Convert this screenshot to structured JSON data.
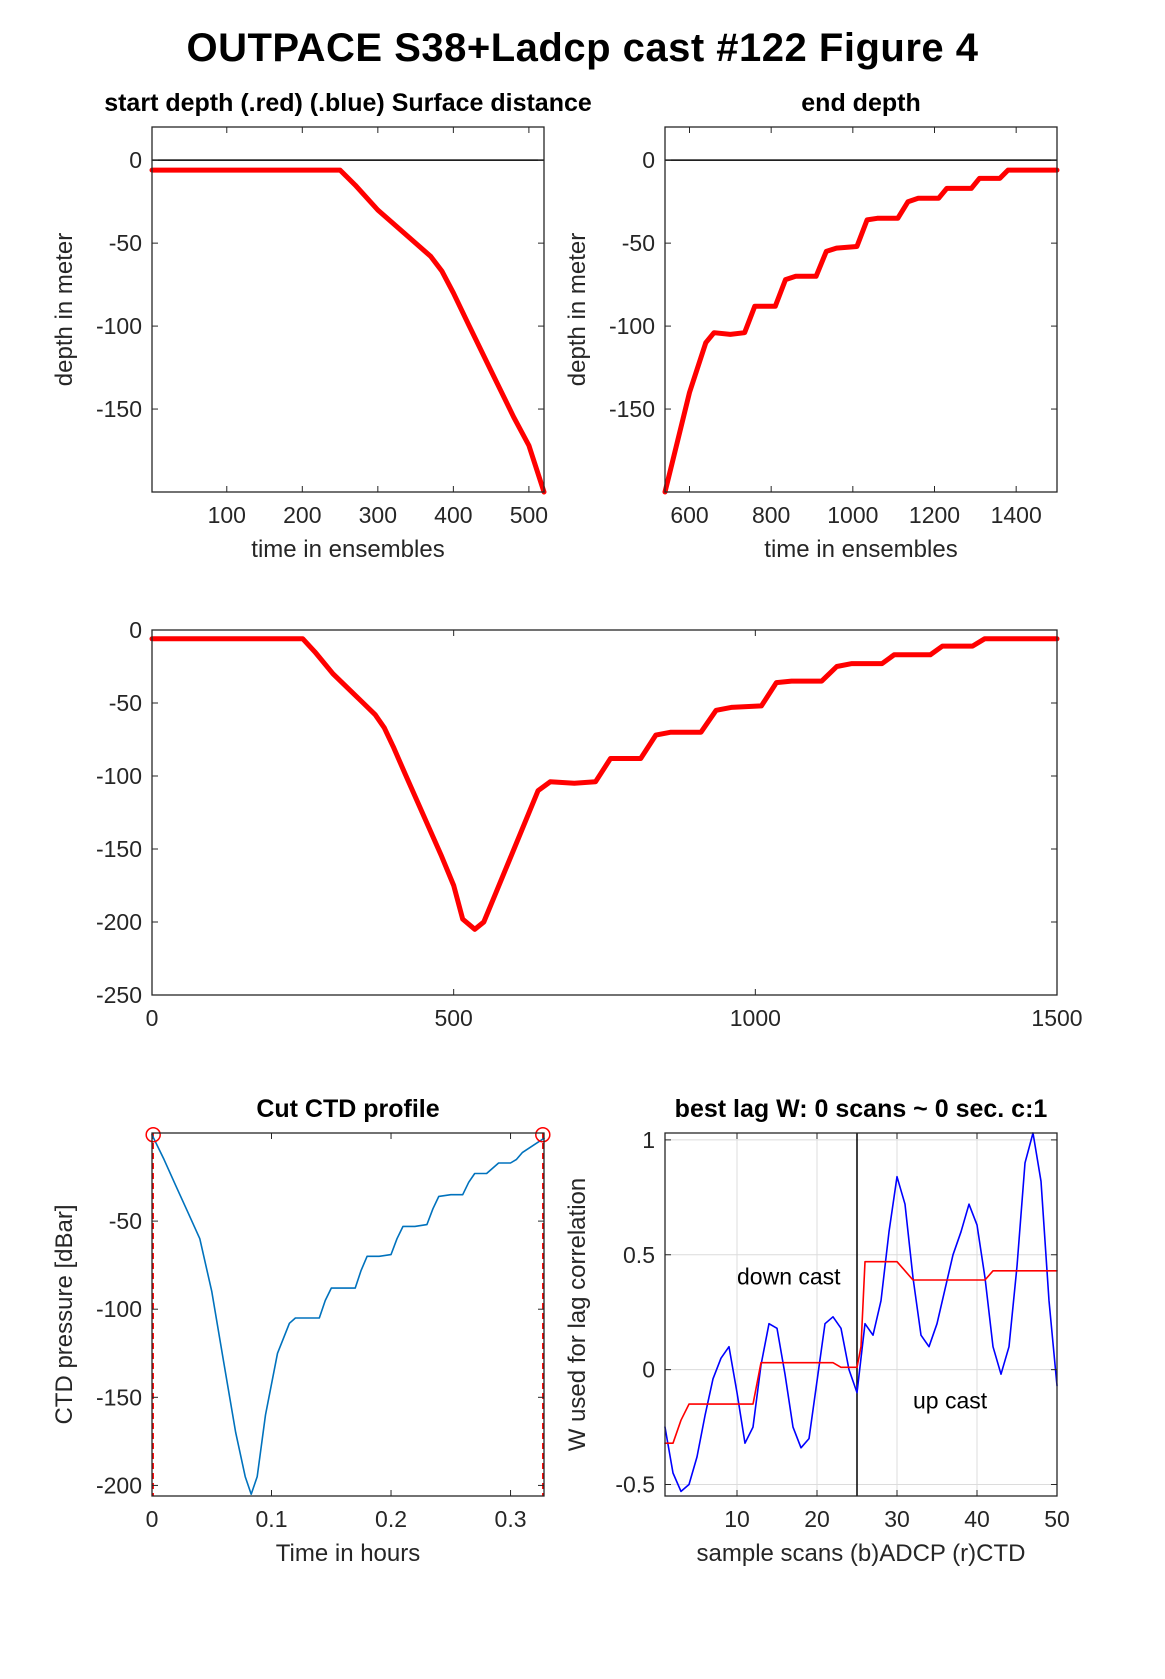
{
  "figure_title": "OUTPACE S38+Ladcp cast #122   Figure 4",
  "chart_data": [
    {
      "id": "start",
      "type": "line",
      "title": "start depth (.red) (.blue) Surface distance",
      "xlabel": "time in ensembles",
      "ylabel": "depth in meter",
      "xlim": [
        1,
        520
      ],
      "ylim": [
        -200,
        20
      ],
      "xticks": [
        100,
        200,
        300,
        400,
        500
      ],
      "yticks": [
        0,
        -50,
        -100,
        -150
      ],
      "hlines": [
        0
      ],
      "series": [
        {
          "color": "#ff0000",
          "x": [
            1,
            100,
            200,
            250,
            270,
            300,
            330,
            350,
            370,
            385,
            400,
            420,
            450,
            480,
            500,
            520
          ],
          "y": [
            -6,
            -6,
            -6,
            -6,
            -15,
            -30,
            -42,
            -50,
            -58,
            -67,
            -80,
            -99,
            -127,
            -155,
            -172,
            -200
          ]
        }
      ]
    },
    {
      "id": "end",
      "type": "line",
      "title": "end depth",
      "xlabel": "time in ensembles",
      "ylabel": "depth in meter",
      "xlim": [
        540,
        1500
      ],
      "ylim": [
        -200,
        20
      ],
      "xticks": [
        600,
        800,
        1000,
        1200,
        1400
      ],
      "yticks": [
        0,
        -50,
        -100,
        -150
      ],
      "hlines": [
        0
      ],
      "series": [
        {
          "color": "#ff0000",
          "x": [
            540,
            560,
            600,
            640,
            660,
            700,
            735,
            760,
            810,
            835,
            860,
            910,
            935,
            960,
            1010,
            1035,
            1060,
            1110,
            1135,
            1160,
            1210,
            1230,
            1290,
            1310,
            1360,
            1380,
            1400,
            1500
          ],
          "y": [
            -200,
            -180,
            -140,
            -110,
            -104,
            -105,
            -104,
            -88,
            -88,
            -72,
            -70,
            -70,
            -55,
            -53,
            -52,
            -36,
            -35,
            -35,
            -25,
            -23,
            -23,
            -17,
            -17,
            -11,
            -11,
            -6,
            -6,
            -6
          ]
        }
      ]
    },
    {
      "id": "full",
      "type": "line",
      "title": "",
      "xlabel": "",
      "ylabel": "",
      "xlim": [
        0,
        1500
      ],
      "ylim": [
        -250,
        0
      ],
      "xticks": [
        0,
        500,
        1000,
        1500
      ],
      "yticks": [
        0,
        -50,
        -100,
        -150,
        -200,
        -250
      ],
      "series": [
        {
          "color": "#ff0000",
          "x": [
            0,
            100,
            200,
            250,
            270,
            300,
            330,
            350,
            370,
            385,
            400,
            420,
            450,
            480,
            500,
            515,
            535,
            550,
            570,
            600,
            640,
            660,
            700,
            735,
            760,
            810,
            835,
            860,
            910,
            935,
            960,
            1010,
            1035,
            1060,
            1110,
            1135,
            1160,
            1210,
            1230,
            1290,
            1310,
            1360,
            1380,
            1400,
            1500
          ],
          "y": [
            -6,
            -6,
            -6,
            -6,
            -15,
            -30,
            -42,
            -50,
            -58,
            -67,
            -80,
            -99,
            -127,
            -155,
            -175,
            -198,
            -205,
            -200,
            -180,
            -150,
            -110,
            -104,
            -105,
            -104,
            -88,
            -88,
            -72,
            -70,
            -70,
            -55,
            -53,
            -52,
            -36,
            -35,
            -35,
            -25,
            -23,
            -23,
            -17,
            -17,
            -11,
            -11,
            -6,
            -6,
            -6
          ]
        }
      ]
    },
    {
      "id": "ctd",
      "type": "line",
      "title": "Cut CTD profile",
      "xlabel": "Time in hours",
      "ylabel": "CTD pressure [dBar]",
      "xlim": [
        0,
        0.328
      ],
      "ylim": [
        -206,
        0
      ],
      "xticks": [
        0,
        0.1,
        0.2,
        0.3
      ],
      "yticks": [
        -50,
        -100,
        -150,
        -200
      ],
      "markers": [
        {
          "x": 0.001,
          "y": -1
        },
        {
          "x": 0.327,
          "y": -1
        }
      ],
      "vlines_dashed": [
        0.001,
        0.327
      ],
      "series": [
        {
          "color": "#0072bd",
          "x": [
            0,
            0.01,
            0.02,
            0.03,
            0.04,
            0.05,
            0.06,
            0.07,
            0.078,
            0.083,
            0.088,
            0.095,
            0.105,
            0.115,
            0.12,
            0.13,
            0.14,
            0.145,
            0.15,
            0.16,
            0.17,
            0.175,
            0.18,
            0.19,
            0.2,
            0.205,
            0.21,
            0.22,
            0.23,
            0.235,
            0.24,
            0.25,
            0.26,
            0.265,
            0.27,
            0.28,
            0.29,
            0.3,
            0.305,
            0.31,
            0.328
          ],
          "y": [
            -1,
            -15,
            -30,
            -45,
            -60,
            -90,
            -130,
            -170,
            -195,
            -205,
            -195,
            -160,
            -125,
            -108,
            -105,
            -105,
            -105,
            -95,
            -88,
            -88,
            -88,
            -78,
            -70,
            -70,
            -69,
            -60,
            -53,
            -53,
            -52,
            -43,
            -36,
            -35,
            -35,
            -28,
            -23,
            -23,
            -17,
            -17,
            -15,
            -11,
            -3
          ]
        }
      ]
    },
    {
      "id": "lag",
      "type": "line",
      "title": "best lag W: 0 scans ~ 0 sec.  c:1",
      "xlabel": "sample scans (b)ADCP (r)CTD",
      "ylabel": "W used for lag correlation",
      "xlim": [
        1,
        50
      ],
      "ylim": [
        -0.55,
        1.03
      ],
      "xticks": [
        10,
        20,
        30,
        40,
        50
      ],
      "yticks": [
        1,
        0.5,
        0,
        -0.5
      ],
      "grid": true,
      "vline": 25,
      "annotations": [
        {
          "text": "down cast",
          "x": 10,
          "y": 0.37
        },
        {
          "text": "up cast",
          "x": 32,
          "y": -0.17
        }
      ],
      "series": [
        {
          "name": "",
          "color": "#0000ff",
          "x": [
            1,
            2,
            3,
            4,
            5,
            6,
            7,
            8,
            9,
            10,
            11,
            12,
            13,
            14,
            15,
            16,
            17,
            18,
            19,
            20,
            21,
            22,
            23,
            24,
            25,
            26,
            27,
            28,
            29,
            30,
            31,
            32,
            33,
            34,
            35,
            36,
            37,
            38,
            39,
            40,
            41,
            42,
            43,
            44,
            45,
            46,
            47,
            48,
            49,
            50
          ],
          "y": [
            -0.25,
            -0.45,
            -0.53,
            -0.5,
            -0.38,
            -0.2,
            -0.04,
            0.05,
            0.1,
            -0.1,
            -0.32,
            -0.25,
            0.02,
            0.2,
            0.18,
            -0.02,
            -0.25,
            -0.34,
            -0.3,
            -0.05,
            0.2,
            0.23,
            0.18,
            0.0,
            -0.1,
            0.2,
            0.15,
            0.3,
            0.6,
            0.84,
            0.72,
            0.4,
            0.15,
            0.1,
            0.2,
            0.35,
            0.5,
            0.6,
            0.72,
            0.63,
            0.4,
            0.1,
            -0.02,
            0.1,
            0.45,
            0.9,
            1.03,
            0.82,
            0.3,
            -0.07
          ]
        },
        {
          "name": "",
          "color": "#ff0000",
          "x": [
            1,
            2,
            3,
            4,
            12,
            13,
            22,
            23,
            25,
            25.5,
            26,
            30,
            31,
            32,
            40,
            41,
            42,
            50
          ],
          "y": [
            -0.32,
            -0.32,
            -0.22,
            -0.15,
            -0.15,
            0.03,
            0.03,
            0.01,
            0.01,
            0.1,
            0.47,
            0.47,
            0.43,
            0.39,
            0.39,
            0.39,
            0.43,
            0.43
          ]
        }
      ]
    }
  ]
}
